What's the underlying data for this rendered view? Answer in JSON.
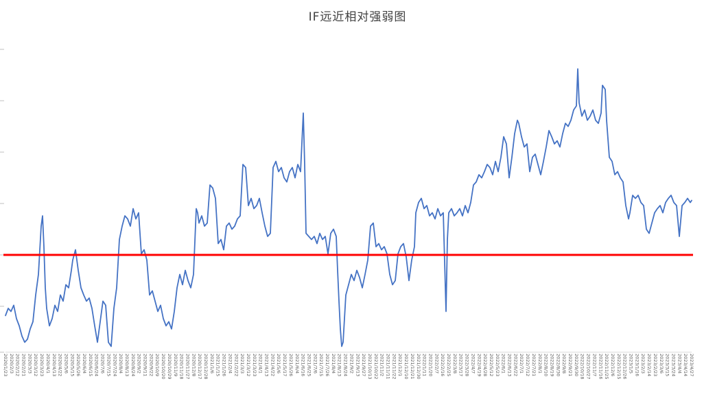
{
  "chart_data": {
    "type": "line",
    "title": "IF远近相对强弱图",
    "xlabel": "",
    "ylabel": "",
    "legend": "none",
    "grid": false,
    "ylim": [
      -1.0,
      2.0
    ],
    "y_tick_step": 0.5,
    "series_color": "#4472C4",
    "axis_color": "#d9d9d9",
    "tick_color": "#bfbfbf",
    "label_color": "#595959",
    "reference_line": {
      "value": 0,
      "color": "#FF0000"
    },
    "x_labels": [
      "2020/1/23",
      "2020/2/3",
      "2020/2/12",
      "2020/2/21",
      "2020/3/3",
      "2020/3/12",
      "2020/3/23",
      "2020/4/1",
      "2020/4/13",
      "2020/4/22",
      "2020/5/6",
      "2020/5/15",
      "2020/5/26",
      "2020/6/4",
      "2020/6/15",
      "2020/6/24",
      "2020/7/6",
      "2020/7/15",
      "2020/7/24",
      "2020/8/4",
      "2020/8/13",
      "2020/8/24",
      "2020/9/2",
      "2020/9/11",
      "2020/9/22",
      "2020/10/9",
      "2020/10/20",
      "2020/10/29",
      "2020/11/9",
      "2020/11/18",
      "2020/11/27",
      "2020/12/8",
      "2020/12/17",
      "2020/12/28",
      "2021/1/6",
      "2021/1/15",
      "2021/1/26",
      "2021/2/4",
      "2021/2/22",
      "2021/3/3",
      "2021/3/12",
      "2021/3/23",
      "2021/4/1",
      "2021/4/13",
      "2021/4/22",
      "2021/5/6",
      "2021/5/17",
      "2021/5/26",
      "2021/6/4",
      "2021/6/16",
      "2021/6/25",
      "2021/7/6",
      "2021/7/15",
      "2021/7/26",
      "2021/8/4",
      "2021/8/13",
      "2021/8/24",
      "2021/9/2",
      "2021/9/13",
      "2021/9/27",
      "2021/10/13",
      "2021/10/22",
      "2021/11/2",
      "2021/11/11",
      "2021/11/22",
      "2021/12/1",
      "2021/12/10",
      "2021/12/21",
      "2021/12/30",
      "2022/1/11",
      "2022/1/20",
      "2022/2/7",
      "2022/2/16",
      "2022/2/25",
      "2022/3/8",
      "2022/3/17",
      "2022/3/28",
      "2022/4/7",
      "2022/4/19",
      "2022/4/28",
      "2022/5/12",
      "2022/5/23",
      "2022/6/1",
      "2022/6/13",
      "2022/6/22",
      "2022/7/1",
      "2022/7/12",
      "2022/7/21",
      "2022/8/1",
      "2022/8/10",
      "2022/8/19",
      "2022/8/30",
      "2022/9/8",
      "2022/9/21",
      "2022/9/30",
      "2022/10/18",
      "2022/10/27",
      "2022/11/7",
      "2022/11/16",
      "2022/11/25",
      "2022/12/6",
      "2022/12/15",
      "2022/12/26",
      "2023/1/5",
      "2023/1/16",
      "2023/2/3",
      "2023/2/14",
      "2023/2/23",
      "2023/3/6",
      "2023/3/15",
      "2023/3/24",
      "2023/4/4",
      "2023/4/14",
      "2023/4/27"
    ],
    "series": [
      {
        "name": "IF远近相对强弱",
        "points": [
          [
            0.0,
            -0.59
          ],
          [
            0.004,
            -0.52
          ],
          [
            0.008,
            -0.55
          ],
          [
            0.012,
            -0.49
          ],
          [
            0.016,
            -0.62
          ],
          [
            0.02,
            -0.69
          ],
          [
            0.024,
            -0.79
          ],
          [
            0.028,
            -0.85
          ],
          [
            0.032,
            -0.82
          ],
          [
            0.036,
            -0.72
          ],
          [
            0.04,
            -0.65
          ],
          [
            0.044,
            -0.39
          ],
          [
            0.048,
            -0.19
          ],
          [
            0.052,
            0.28
          ],
          [
            0.054,
            0.38
          ],
          [
            0.056,
            0.08
          ],
          [
            0.058,
            -0.32
          ],
          [
            0.06,
            -0.52
          ],
          [
            0.064,
            -0.69
          ],
          [
            0.068,
            -0.62
          ],
          [
            0.072,
            -0.49
          ],
          [
            0.076,
            -0.55
          ],
          [
            0.08,
            -0.39
          ],
          [
            0.084,
            -0.45
          ],
          [
            0.088,
            -0.29
          ],
          [
            0.092,
            -0.32
          ],
          [
            0.096,
            -0.15
          ],
          [
            0.098,
            -0.05
          ],
          [
            0.102,
            0.05
          ],
          [
            0.106,
            -0.15
          ],
          [
            0.11,
            -0.32
          ],
          [
            0.114,
            -0.39
          ],
          [
            0.118,
            -0.45
          ],
          [
            0.122,
            -0.42
          ],
          [
            0.126,
            -0.52
          ],
          [
            0.13,
            -0.69
          ],
          [
            0.134,
            -0.85
          ],
          [
            0.138,
            -0.65
          ],
          [
            0.142,
            -0.45
          ],
          [
            0.146,
            -0.49
          ],
          [
            0.15,
            -0.85
          ],
          [
            0.154,
            -0.89
          ],
          [
            0.158,
            -0.52
          ],
          [
            0.162,
            -0.32
          ],
          [
            0.166,
            0.15
          ],
          [
            0.17,
            0.28
          ],
          [
            0.174,
            0.38
          ],
          [
            0.178,
            0.35
          ],
          [
            0.182,
            0.28
          ],
          [
            0.186,
            0.45
          ],
          [
            0.19,
            0.35
          ],
          [
            0.194,
            0.41
          ],
          [
            0.198,
            0.01
          ],
          [
            0.202,
            0.05
          ],
          [
            0.206,
            -0.05
          ],
          [
            0.21,
            -0.39
          ],
          [
            0.214,
            -0.35
          ],
          [
            0.218,
            -0.45
          ],
          [
            0.222,
            -0.55
          ],
          [
            0.226,
            -0.49
          ],
          [
            0.23,
            -0.62
          ],
          [
            0.234,
            -0.69
          ],
          [
            0.238,
            -0.65
          ],
          [
            0.242,
            -0.72
          ],
          [
            0.246,
            -0.55
          ],
          [
            0.25,
            -0.32
          ],
          [
            0.254,
            -0.19
          ],
          [
            0.258,
            -0.29
          ],
          [
            0.262,
            -0.15
          ],
          [
            0.266,
            -0.25
          ],
          [
            0.27,
            -0.32
          ],
          [
            0.274,
            -0.19
          ],
          [
            0.278,
            0.45
          ],
          [
            0.28,
            0.41
          ],
          [
            0.282,
            0.31
          ],
          [
            0.286,
            0.38
          ],
          [
            0.29,
            0.28
          ],
          [
            0.294,
            0.31
          ],
          [
            0.298,
            0.68
          ],
          [
            0.302,
            0.65
          ],
          [
            0.306,
            0.55
          ],
          [
            0.31,
            0.11
          ],
          [
            0.314,
            0.15
          ],
          [
            0.318,
            0.05
          ],
          [
            0.322,
            0.28
          ],
          [
            0.326,
            0.31
          ],
          [
            0.33,
            0.25
          ],
          [
            0.334,
            0.28
          ],
          [
            0.338,
            0.35
          ],
          [
            0.342,
            0.38
          ],
          [
            0.346,
            0.88
          ],
          [
            0.35,
            0.85
          ],
          [
            0.354,
            0.48
          ],
          [
            0.358,
            0.55
          ],
          [
            0.362,
            0.45
          ],
          [
            0.366,
            0.48
          ],
          [
            0.37,
            0.55
          ],
          [
            0.374,
            0.41
          ],
          [
            0.378,
            0.28
          ],
          [
            0.382,
            0.18
          ],
          [
            0.386,
            0.21
          ],
          [
            0.39,
            0.85
          ],
          [
            0.394,
            0.91
          ],
          [
            0.398,
            0.81
          ],
          [
            0.402,
            0.85
          ],
          [
            0.406,
            0.75
          ],
          [
            0.41,
            0.71
          ],
          [
            0.414,
            0.81
          ],
          [
            0.418,
            0.85
          ],
          [
            0.422,
            0.75
          ],
          [
            0.426,
            0.88
          ],
          [
            0.43,
            0.81
          ],
          [
            0.434,
            1.38
          ],
          [
            0.436,
            0.88
          ],
          [
            0.438,
            0.21
          ],
          [
            0.442,
            0.18
          ],
          [
            0.446,
            0.15
          ],
          [
            0.45,
            0.18
          ],
          [
            0.454,
            0.11
          ],
          [
            0.458,
            0.21
          ],
          [
            0.462,
            0.15
          ],
          [
            0.466,
            0.18
          ],
          [
            0.47,
            0.01
          ],
          [
            0.474,
            0.21
          ],
          [
            0.478,
            0.25
          ],
          [
            0.482,
            0.18
          ],
          [
            0.484,
            -0.15
          ],
          [
            0.486,
            -0.45
          ],
          [
            0.488,
            -0.72
          ],
          [
            0.49,
            -0.89
          ],
          [
            0.492,
            -0.85
          ],
          [
            0.496,
            -0.39
          ],
          [
            0.5,
            -0.29
          ],
          [
            0.504,
            -0.19
          ],
          [
            0.508,
            -0.25
          ],
          [
            0.512,
            -0.15
          ],
          [
            0.516,
            -0.22
          ],
          [
            0.52,
            -0.32
          ],
          [
            0.524,
            -0.19
          ],
          [
            0.528,
            -0.05
          ],
          [
            0.532,
            0.28
          ],
          [
            0.536,
            0.31
          ],
          [
            0.54,
            0.08
          ],
          [
            0.544,
            0.11
          ],
          [
            0.548,
            0.05
          ],
          [
            0.552,
            0.08
          ],
          [
            0.556,
            0.01
          ],
          [
            0.56,
            -0.19
          ],
          [
            0.564,
            -0.29
          ],
          [
            0.568,
            -0.25
          ],
          [
            0.572,
            0.01
          ],
          [
            0.576,
            0.08
          ],
          [
            0.58,
            0.11
          ],
          [
            0.584,
            -0.02
          ],
          [
            0.588,
            -0.25
          ],
          [
            0.592,
            -0.05
          ],
          [
            0.596,
            0.08
          ],
          [
            0.598,
            0.41
          ],
          [
            0.602,
            0.51
          ],
          [
            0.606,
            0.55
          ],
          [
            0.61,
            0.45
          ],
          [
            0.614,
            0.48
          ],
          [
            0.618,
            0.38
          ],
          [
            0.622,
            0.41
          ],
          [
            0.626,
            0.35
          ],
          [
            0.63,
            0.45
          ],
          [
            0.634,
            0.38
          ],
          [
            0.638,
            0.41
          ],
          [
            0.642,
            -0.55
          ],
          [
            0.644,
            0.15
          ],
          [
            0.646,
            0.41
          ],
          [
            0.65,
            0.45
          ],
          [
            0.654,
            0.38
          ],
          [
            0.658,
            0.41
          ],
          [
            0.662,
            0.45
          ],
          [
            0.666,
            0.38
          ],
          [
            0.67,
            0.48
          ],
          [
            0.674,
            0.41
          ],
          [
            0.678,
            0.51
          ],
          [
            0.682,
            0.68
          ],
          [
            0.686,
            0.71
          ],
          [
            0.69,
            0.78
          ],
          [
            0.694,
            0.75
          ],
          [
            0.698,
            0.81
          ],
          [
            0.702,
            0.88
          ],
          [
            0.706,
            0.85
          ],
          [
            0.71,
            0.78
          ],
          [
            0.714,
            0.91
          ],
          [
            0.718,
            0.81
          ],
          [
            0.722,
            0.95
          ],
          [
            0.726,
            1.15
          ],
          [
            0.73,
            1.08
          ],
          [
            0.734,
            0.75
          ],
          [
            0.738,
            0.95
          ],
          [
            0.742,
            1.18
          ],
          [
            0.746,
            1.31
          ],
          [
            0.748,
            1.28
          ],
          [
            0.752,
            1.15
          ],
          [
            0.756,
            1.05
          ],
          [
            0.76,
            1.08
          ],
          [
            0.764,
            0.81
          ],
          [
            0.768,
            0.95
          ],
          [
            0.772,
            0.98
          ],
          [
            0.776,
            0.88
          ],
          [
            0.78,
            0.78
          ],
          [
            0.784,
            0.91
          ],
          [
            0.788,
            1.05
          ],
          [
            0.792,
            1.21
          ],
          [
            0.796,
            1.15
          ],
          [
            0.8,
            1.08
          ],
          [
            0.804,
            1.11
          ],
          [
            0.808,
            1.05
          ],
          [
            0.812,
            1.18
          ],
          [
            0.816,
            1.28
          ],
          [
            0.82,
            1.25
          ],
          [
            0.824,
            1.31
          ],
          [
            0.828,
            1.41
          ],
          [
            0.832,
            1.45
          ],
          [
            0.834,
            1.81
          ],
          [
            0.836,
            1.48
          ],
          [
            0.84,
            1.35
          ],
          [
            0.844,
            1.41
          ],
          [
            0.848,
            1.31
          ],
          [
            0.852,
            1.35
          ],
          [
            0.856,
            1.41
          ],
          [
            0.86,
            1.31
          ],
          [
            0.864,
            1.28
          ],
          [
            0.868,
            1.38
          ],
          [
            0.87,
            1.65
          ],
          [
            0.874,
            1.61
          ],
          [
            0.876,
            1.31
          ],
          [
            0.88,
            0.95
          ],
          [
            0.884,
            0.91
          ],
          [
            0.888,
            0.78
          ],
          [
            0.892,
            0.81
          ],
          [
            0.896,
            0.75
          ],
          [
            0.9,
            0.71
          ],
          [
            0.904,
            0.48
          ],
          [
            0.908,
            0.35
          ],
          [
            0.91,
            0.41
          ],
          [
            0.914,
            0.58
          ],
          [
            0.918,
            0.55
          ],
          [
            0.922,
            0.58
          ],
          [
            0.926,
            0.51
          ],
          [
            0.93,
            0.48
          ],
          [
            0.934,
            0.25
          ],
          [
            0.938,
            0.21
          ],
          [
            0.942,
            0.31
          ],
          [
            0.946,
            0.41
          ],
          [
            0.95,
            0.45
          ],
          [
            0.954,
            0.48
          ],
          [
            0.958,
            0.41
          ],
          [
            0.962,
            0.51
          ],
          [
            0.966,
            0.55
          ],
          [
            0.97,
            0.58
          ],
          [
            0.974,
            0.51
          ],
          [
            0.978,
            0.48
          ],
          [
            0.982,
            0.18
          ],
          [
            0.986,
            0.48
          ],
          [
            0.99,
            0.51
          ],
          [
            0.994,
            0.55
          ],
          [
            0.998,
            0.51
          ],
          [
            1.0,
            0.53
          ]
        ]
      }
    ]
  }
}
